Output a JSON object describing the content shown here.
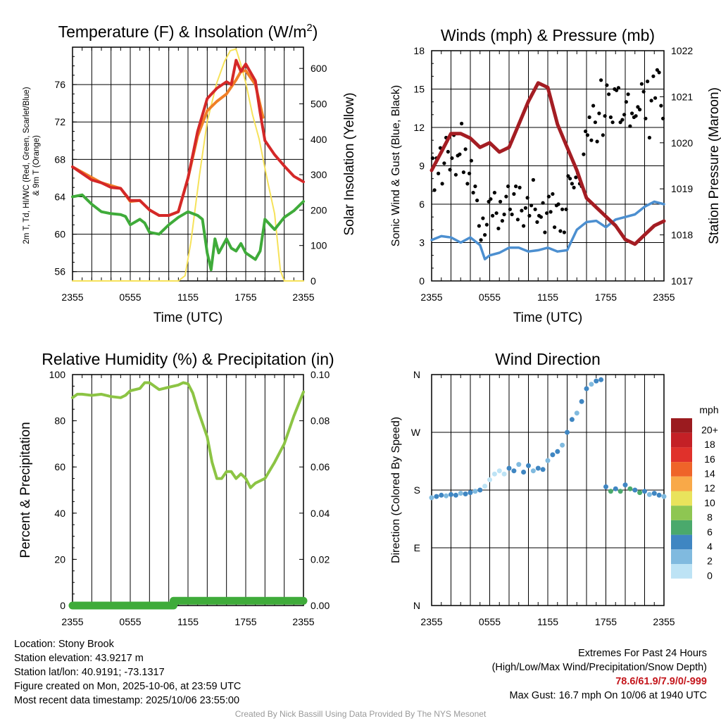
{
  "colors": {
    "temp_red": "#d42828",
    "dewpoint_green": "#3fab3a",
    "temp9m_orange": "#f07f27",
    "insolation_yellow": "#f6e25a",
    "rh_green": "#8cc444",
    "precip_green": "#3fab3a",
    "wind_blue": "#4c8fd0",
    "gust_black": "#000000",
    "pressure_maroon": "#a41d23"
  },
  "time_ticks": [
    "2355",
    "0555",
    "1155",
    "1755",
    "2355"
  ],
  "chart_data": [
    {
      "id": "temp",
      "type": "line",
      "title": "Temperature (F) & Insolation (W/m²)",
      "title_main": "Temperature (F) & Insolation (W/m",
      "title_sup": "2",
      "title_close": ")",
      "xlabel": "Time (UTC)",
      "ylabel_line1": "2m T, Td, HI/WC (Red, Green, Scarlet/Blue)",
      "ylabel_line2": "& 9m T (Orange)",
      "ylabel_right": "Solar Insolation (Yellow)",
      "x_range_hours": [
        0,
        24
      ],
      "ylim": [
        55,
        80
      ],
      "yticks": [
        "56",
        "60",
        "64",
        "68",
        "72",
        "76"
      ],
      "ylim_right": [
        0,
        660
      ],
      "yticks_right": [
        "0",
        "100",
        "200",
        "300",
        "400",
        "500",
        "600"
      ],
      "series": [
        {
          "name": "Solar Insolation",
          "axis": "right",
          "x": [
            0,
            4,
            8,
            11,
            11.7,
            12.3,
            13.2,
            14,
            15,
            15.8,
            16.4,
            17,
            17.5,
            18,
            18.7,
            19.4,
            20.2,
            21,
            21.6,
            22,
            24
          ],
          "y": [
            0,
            0,
            0,
            0,
            15,
            110,
            300,
            450,
            560,
            620,
            650,
            655,
            610,
            560,
            470,
            400,
            290,
            190,
            30,
            0,
            0
          ]
        },
        {
          "name": "9m Temperature",
          "axis": "left",
          "x": [
            0,
            3,
            5,
            6,
            7,
            8,
            9,
            10,
            11,
            12,
            13,
            14,
            15,
            16,
            17,
            17.5,
            18,
            19,
            19.8
          ],
          "y": [
            67.2,
            65.5,
            64.9,
            63.5,
            63.6,
            62.6,
            62.0,
            62.0,
            62.4,
            66.0,
            70.5,
            73.2,
            74.2,
            75.0,
            76.5,
            77.4,
            77.5,
            76.0,
            72.5
          ]
        },
        {
          "name": "2m Temperature",
          "axis": "left",
          "x": [
            0,
            1,
            2,
            3,
            4,
            5,
            6,
            7,
            8,
            9,
            10,
            11,
            12,
            13,
            14,
            15,
            16,
            16.5,
            17,
            17.5,
            18,
            19,
            19.5,
            20,
            21,
            22,
            23,
            24
          ],
          "y": [
            67.2,
            66.5,
            65.8,
            65.5,
            65.0,
            64.9,
            63.6,
            63.6,
            62.6,
            62.0,
            62.0,
            62.4,
            66.0,
            71.0,
            74.5,
            75.6,
            76.3,
            76.0,
            78.6,
            77.4,
            78.2,
            76.4,
            73.0,
            70.0,
            68.5,
            67.3,
            66.2,
            65.6
          ]
        },
        {
          "name": "2m Dewpoint",
          "axis": "left",
          "x": [
            0,
            1,
            2,
            3,
            4,
            5,
            5.5,
            6,
            7,
            7.5,
            8,
            9,
            10,
            11,
            12,
            13,
            13.5,
            14,
            14.4,
            14.8,
            15.2,
            16,
            16.5,
            17,
            17.5,
            18,
            19,
            19.5,
            20,
            21,
            22,
            23,
            24
          ],
          "y": [
            64.0,
            64.2,
            63.2,
            62.4,
            62.2,
            62.1,
            61.9,
            61.0,
            61.6,
            61.2,
            60.2,
            60.0,
            61.0,
            61.8,
            62.4,
            62.0,
            61.6,
            58.0,
            56.2,
            59.5,
            58.0,
            59.5,
            58.5,
            58.2,
            59.0,
            58.0,
            57.3,
            58.2,
            61.6,
            60.5,
            61.8,
            62.5,
            63.5
          ]
        }
      ]
    },
    {
      "id": "wind",
      "type": "line",
      "title": "Winds (mph) & Pressure (mb)",
      "xlabel": "Time (UTC)",
      "ylabel": "Sonic Wind & Gust (Blue, Black)",
      "ylabel_right": "Station Pressure (Maroon)",
      "x_range_hours": [
        0,
        24
      ],
      "ylim": [
        0,
        18
      ],
      "yticks": [
        "0",
        "3",
        "6",
        "9",
        "12",
        "15",
        "18"
      ],
      "ylim_right": [
        1017,
        1022
      ],
      "yticks_right": [
        "1017",
        "1018",
        "1019",
        "1020",
        "1021",
        "1022"
      ],
      "series": [
        {
          "name": "Station Pressure",
          "axis": "right",
          "x": [
            0,
            1,
            2,
            3,
            4,
            5,
            6,
            7,
            8,
            9,
            10,
            11,
            12,
            13,
            14,
            15,
            16,
            17,
            18,
            19,
            20,
            21,
            22,
            23,
            24
          ],
          "y": [
            1019.4,
            1019.8,
            1020.2,
            1020.2,
            1020.1,
            1019.9,
            1020.0,
            1019.8,
            1019.9,
            1020.4,
            1020.9,
            1021.3,
            1021.2,
            1020.4,
            1019.9,
            1019.4,
            1018.8,
            1018.6,
            1018.4,
            1018.2,
            1017.9,
            1017.8,
            1018.0,
            1018.2,
            1018.3
          ]
        },
        {
          "name": "Sonic Wind",
          "axis": "left",
          "x": [
            0,
            1,
            2,
            3,
            4,
            5,
            5.5,
            6,
            7,
            8,
            9,
            10,
            11,
            12,
            13,
            14,
            15,
            16,
            17,
            18,
            19,
            20,
            21,
            22,
            23,
            24
          ],
          "y": [
            3.2,
            3.5,
            3.4,
            3.0,
            3.4,
            2.8,
            1.7,
            2.0,
            2.2,
            2.6,
            2.6,
            2.3,
            2.4,
            2.6,
            2.3,
            2.4,
            4.0,
            4.6,
            4.7,
            4.2,
            4.8,
            5.0,
            5.2,
            5.8,
            6.2,
            6.0
          ]
        },
        {
          "name": "Gust",
          "axis": "left",
          "style": "dots",
          "x": [
            0.1,
            0.3,
            0.5,
            0.7,
            0.9,
            1.1,
            1.3,
            1.5,
            1.7,
            1.9,
            2.1,
            2.3,
            2.5,
            2.7,
            2.9,
            3.1,
            3.3,
            3.5,
            3.7,
            3.9,
            4.1,
            4.3,
            4.5,
            4.7,
            4.9,
            5.1,
            5.3,
            5.5,
            5.7,
            5.9,
            6.1,
            6.3,
            6.5,
            6.7,
            6.9,
            7.1,
            7.3,
            7.5,
            7.7,
            7.9,
            8.1,
            8.3,
            8.5,
            8.7,
            8.9,
            9.1,
            9.3,
            9.5,
            9.7,
            9.9,
            10.1,
            10.3,
            10.5,
            10.7,
            10.9,
            11.1,
            11.3,
            11.5,
            11.7,
            11.9,
            12.1,
            12.3,
            12.5,
            12.7,
            12.9,
            13.1,
            13.3,
            13.5,
            13.7,
            13.9,
            14.1,
            14.3,
            14.5,
            14.7,
            14.9,
            15.1,
            15.3,
            15.5,
            15.7,
            15.9,
            16.1,
            16.3,
            16.5,
            16.7,
            16.9,
            17.1,
            17.3,
            17.5,
            17.7,
            17.9,
            18.1,
            18.3,
            18.5,
            18.7,
            18.9,
            19.1,
            19.3,
            19.5,
            19.7,
            19.9,
            20.1,
            20.3,
            20.5,
            20.7,
            20.9,
            21.1,
            21.3,
            21.5,
            21.7,
            21.9,
            22.1,
            22.3,
            22.5,
            22.7,
            22.9,
            23.1,
            23.3,
            23.5,
            23.7,
            23.9
          ],
          "y": [
            9.6,
            7.1,
            9.6,
            8.4,
            10.4,
            7.6,
            9.2,
            11.2,
            10.1,
            8.7,
            9.6,
            11.4,
            8.3,
            9.8,
            9.9,
            12.3,
            8.5,
            10.3,
            7.6,
            8.4,
            9.4,
            6.9,
            7.4,
            6.3,
            4.3,
            3.2,
            4.9,
            3.6,
            4.4,
            6.2,
            6.4,
            5.1,
            6.9,
            5.3,
            4.1,
            6.2,
            4.7,
            5.2,
            6.6,
            7.4,
            5.6,
            5.2,
            6.8,
            7.4,
            4.8,
            7.3,
            5.5,
            4.3,
            5.7,
            6.5,
            5.1,
            5.9,
            7.9,
            5.6,
            4.6,
            5.1,
            5.0,
            6.1,
            3.8,
            5.3,
            6.6,
            5.4,
            6.8,
            4.2,
            5.9,
            6.0,
            3.9,
            5.6,
            3.8,
            5.6,
            8.2,
            8.0,
            7.6,
            7.3,
            8.1,
            8.4,
            7.6,
            7.4,
            9.9,
            11.7,
            11.4,
            12.8,
            11.0,
            13.7,
            12.4,
            10.9,
            13.1,
            15.7,
            11.4,
            12.9,
            15.3,
            14.6,
            12.8,
            12.4,
            15.0,
            14.9,
            15.1,
            12.4,
            12.6,
            13.0,
            14.0,
            14.6,
            12.1,
            13.1,
            12.8,
            12.9,
            13.6,
            13.4,
            15.4,
            14.8,
            12.7,
            15.6,
            11.2,
            14.1,
            16.0,
            14.3,
            16.5,
            16.3,
            13.7,
            12.7
          ]
        }
      ]
    },
    {
      "id": "rh",
      "type": "line",
      "title": "Relative Humidity (%) & Precipitation (in)",
      "ylabel": "Percent & Precipitation",
      "x_range_hours": [
        0,
        24
      ],
      "ylim": [
        0,
        100
      ],
      "yticks": [
        "0",
        "20",
        "40",
        "60",
        "80",
        "100"
      ],
      "ylim_right": [
        0,
        0.1
      ],
      "yticks_right": [
        "0.00",
        "0.02",
        "0.04",
        "0.06",
        "0.08",
        "0.10"
      ],
      "series": [
        {
          "name": "Relative Humidity",
          "axis": "left",
          "x": [
            0,
            0.5,
            1,
            2,
            3,
            4,
            5,
            5.5,
            6,
            7,
            7.5,
            8,
            9,
            10,
            11,
            11.5,
            12,
            12.5,
            13,
            14,
            14.5,
            15,
            15.5,
            16,
            16.5,
            17,
            17.5,
            18,
            18.5,
            19,
            20,
            21,
            22,
            23,
            24
          ],
          "y": [
            90,
            91.5,
            91.5,
            91,
            91.5,
            90.5,
            90,
            91,
            93,
            94,
            96.5,
            96.5,
            93.5,
            94.5,
            95.5,
            96.5,
            96,
            92,
            85,
            73,
            62,
            55,
            55,
            58,
            58,
            55,
            57,
            55,
            51,
            53,
            55,
            62,
            70,
            82,
            92.5
          ]
        },
        {
          "name": "Precipitation",
          "axis": "right",
          "x": [
            0,
            10.5,
            10.5,
            24
          ],
          "y": [
            0,
            0,
            0.0002,
            0.0002
          ]
        }
      ]
    },
    {
      "id": "dir",
      "type": "scatter",
      "title": "Wind Direction",
      "ylabel": "Direction (Colored By Speed)",
      "x_range_hours": [
        0,
        24
      ],
      "yticks": [
        "N",
        "E",
        "S",
        "W",
        "N"
      ],
      "legend": {
        "title": "mph",
        "labels": [
          "20+",
          "18",
          "16",
          "14",
          "12",
          "10",
          "8",
          "6",
          "4",
          "2",
          "0"
        ],
        "colors": [
          "#9b1b1f",
          "#c42026",
          "#e0312b",
          "#ef6429",
          "#f9a948",
          "#e9e35c",
          "#8ec652",
          "#4aa96c",
          "#3f86c2",
          "#80badf",
          "#bde3f5"
        ]
      },
      "series": [
        {
          "name": "Direction",
          "x": [
            0,
            0.5,
            1,
            1.5,
            2,
            2.5,
            3,
            3.5,
            4,
            4.5,
            5,
            5.5,
            6,
            6.5,
            7,
            7.5,
            8,
            8.5,
            9,
            9.5,
            10,
            10.5,
            11,
            11.5,
            12,
            12.5,
            13,
            13.5,
            14,
            14.5,
            15,
            15.5,
            16,
            16.5,
            17,
            17.5,
            18,
            18.5,
            19,
            19.5,
            20,
            20.5,
            21,
            21.5,
            22,
            22.5,
            23,
            23.5,
            24
          ],
          "y": [
            168,
            170,
            172,
            171,
            173,
            172,
            175,
            174,
            176,
            178,
            180,
            186,
            196,
            205,
            210,
            205,
            214,
            210,
            220,
            208,
            218,
            210,
            214,
            212,
            226,
            235,
            240,
            250,
            270,
            290,
            300,
            318,
            338,
            345,
            350,
            352,
            185,
            178,
            182,
            178,
            188,
            182,
            180,
            176,
            178,
            173,
            175,
            172,
            170
          ]
        }
      ]
    }
  ],
  "info": {
    "location": "Location: Stony Brook",
    "elevation": "Station elevation: 43.9217 m",
    "latlon": "Station lat/lon: 40.9191; -73.1317",
    "created": "Figure created on Mon, 2025-10-06, at 23:59 UTC",
    "recent": "Most recent data timestamp: 2025/10/06 23:55:00"
  },
  "extremes": {
    "title": "Extremes For Past 24 Hours",
    "subtitle": "(High/Low/Max Wind/Precipitation/Snow Depth)",
    "values": "78.6/61.9/7.9/0/-999",
    "gust": "Max Gust: 16.7 mph On 10/06 at 1940 UTC"
  },
  "credit": "Created By Nick Bassill Using Data Provided By The NYS Mesonet"
}
